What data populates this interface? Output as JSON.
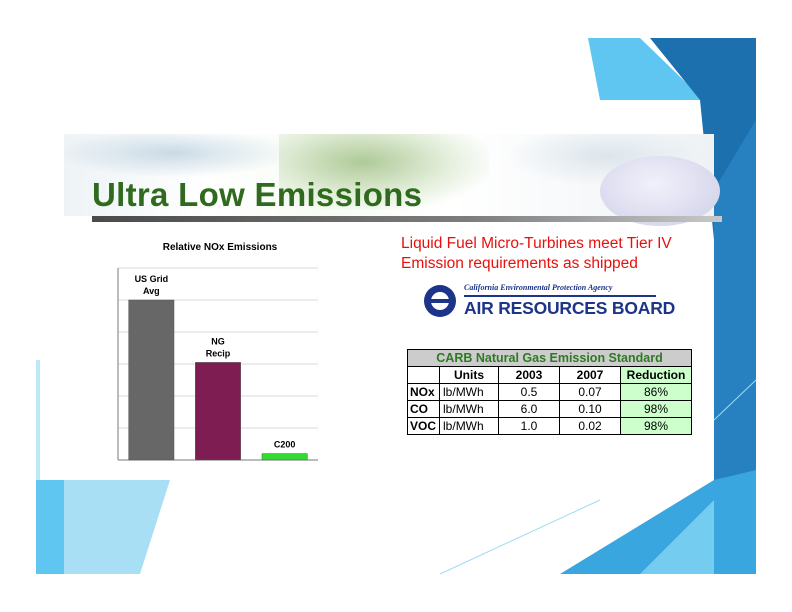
{
  "slide": {
    "title": "Ultra Low Emissions",
    "note": "Liquid Fuel Micro-Turbines meet Tier IV Emission requirements as shipped"
  },
  "logo": {
    "agency": "California Environmental Protection Agency",
    "board": "AIR RESOURCES BOARD"
  },
  "colors": {
    "title": "#2f6a1e",
    "note": "#e8100c",
    "logo": "#1c3489",
    "table_caption": "#2d7a22",
    "table_caption_bg": "#cccccc",
    "reduction_bg": "#ccffcc"
  },
  "chart_data": {
    "type": "bar",
    "title": "Relative NOx Emissions",
    "categories": [
      "US Grid Avg",
      "NG Recip",
      "C200"
    ],
    "values": [
      100,
      61,
      4
    ],
    "ylim": [
      0,
      120
    ],
    "grid": true,
    "colors": [
      "#676767",
      "#7e1d51",
      "#2fdc2f"
    ]
  },
  "carb_table": {
    "caption": "CARB Natural Gas Emission Standard",
    "columns": [
      "",
      "Units",
      "2003",
      "2007",
      "Reduction"
    ],
    "rows": [
      {
        "pollutant": "NOx",
        "units": "lb/MWh",
        "y2003": "0.5",
        "y2007": "0.07",
        "reduction": "86%"
      },
      {
        "pollutant": "CO",
        "units": "lb/MWh",
        "y2003": "6.0",
        "y2007": "0.10",
        "reduction": "98%"
      },
      {
        "pollutant": "VOC",
        "units": "lb/MWh",
        "y2003": "1.0",
        "y2007": "0.02",
        "reduction": "98%"
      }
    ]
  }
}
